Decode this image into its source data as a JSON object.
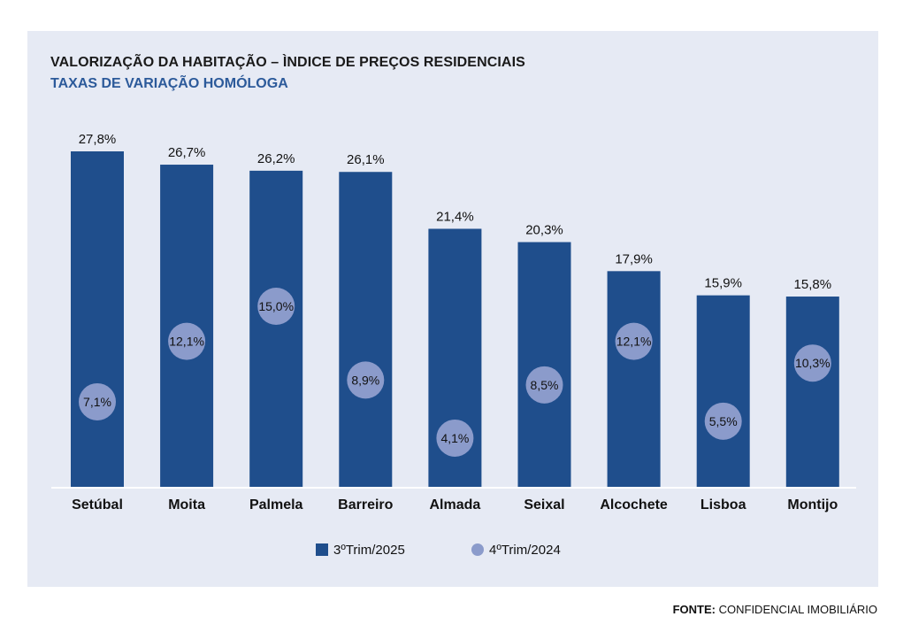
{
  "title": "VALORIZAÇÃO DA HABITAÇÃO – ÌNDICE DE PREÇOS RESIDENCIAIS",
  "subtitle": "TAXAS DE VARIAÇÃO HOMÓLOGA",
  "source": {
    "label": "FONTE:",
    "text": "CONFIDENCIAL IMOBILIÁRIO"
  },
  "colors": {
    "bar": "#1f4e8c",
    "dot": "#8b9bcb",
    "panel": "#e6eaf4"
  },
  "chart_data": {
    "type": "bar",
    "categories": [
      "Setúbal",
      "Moita",
      "Palmela",
      "Barreiro",
      "Almada",
      "Seixal",
      "Alcochete",
      "Lisboa",
      "Montijo"
    ],
    "series": [
      {
        "name": "3ºTrim/2025",
        "kind": "bar",
        "values": [
          27.8,
          26.7,
          26.2,
          26.1,
          21.4,
          20.3,
          17.9,
          15.9,
          15.8
        ],
        "labels": [
          "27,8%",
          "26,7%",
          "26,2%",
          "26,1%",
          "21,4%",
          "20,3%",
          "17,9%",
          "15,9%",
          "15,8%"
        ]
      },
      {
        "name": "4ºTrim/2024",
        "kind": "dot",
        "values": [
          7.1,
          12.1,
          15.0,
          8.9,
          4.1,
          8.5,
          12.1,
          5.5,
          10.3
        ],
        "labels": [
          "7,1%",
          "12,1%",
          "15,0%",
          "8,9%",
          "4,1%",
          "8,5%",
          "12,1%",
          "5,5%",
          "10,3%"
        ]
      }
    ],
    "ylim": [
      0,
      28
    ],
    "grid": false,
    "legend_position": "bottom-center"
  }
}
